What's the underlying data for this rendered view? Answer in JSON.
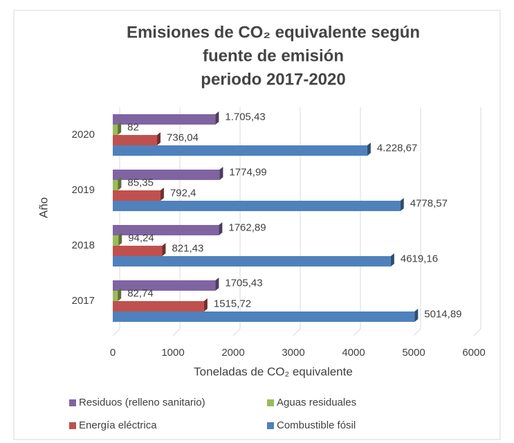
{
  "chart_data": {
    "type": "barh",
    "title": [
      "Emisiones de CO₂ equivalente según",
      "fuente de emisión",
      "periodo 2017-2020"
    ],
    "xlabel": "Toneladas de CO₂ equivalente",
    "ylabel": "Año",
    "categories": [
      "2017",
      "2018",
      "2019",
      "2020"
    ],
    "series": [
      {
        "name": "Residuos (relleno sanitario)",
        "color": "#8064a2",
        "values": [
          1705.43,
          1762.89,
          1774.99,
          1705.43
        ],
        "value_labels": [
          "1705,43",
          "1762,89",
          "1774,99",
          "1.705,43"
        ]
      },
      {
        "name": "Aguas residuales",
        "color": "#9bbb59",
        "values": [
          82.74,
          94.24,
          85.35,
          82
        ],
        "value_labels": [
          "82,74",
          "94,24",
          "85,35",
          "82"
        ]
      },
      {
        "name": "Energía eléctrica",
        "color": "#c0504d",
        "values": [
          1515.72,
          821.43,
          792.4,
          736.04
        ],
        "value_labels": [
          "1515,72",
          "821,43",
          "792,4",
          "736,04"
        ]
      },
      {
        "name": "Combustible fósil",
        "color": "#4f81bd",
        "values": [
          5014.89,
          4619.16,
          4778.57,
          4228.67
        ],
        "value_labels": [
          "5014,89",
          "4619,16",
          "4778,57",
          "4.228,67"
        ]
      }
    ],
    "xlim": [
      0,
      6000
    ],
    "xticks": [
      0,
      1000,
      2000,
      3000,
      4000,
      5000,
      6000
    ],
    "grid": true
  }
}
